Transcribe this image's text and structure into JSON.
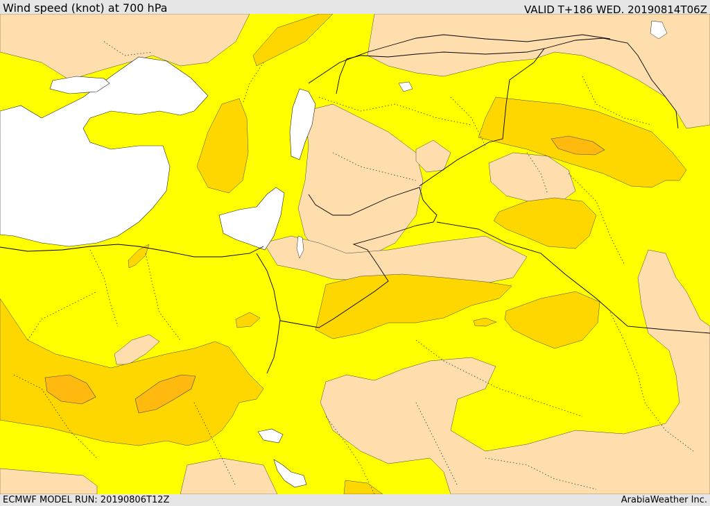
{
  "header": {
    "title": "Wind speed (knot) at 700 hPa",
    "valid": "VALID T+186 WED. 20190814T06Z"
  },
  "footer": {
    "model_run": "ECMWF MODEL RUN: 20190806T12Z",
    "credit": "ArabiaWeather Inc."
  },
  "colors": {
    "calm": "#ffdead",
    "light": "#ffff00",
    "moderate": "#ffd700",
    "strong": "#ffb90f",
    "water": "#ffffff",
    "border": "#000000"
  }
}
